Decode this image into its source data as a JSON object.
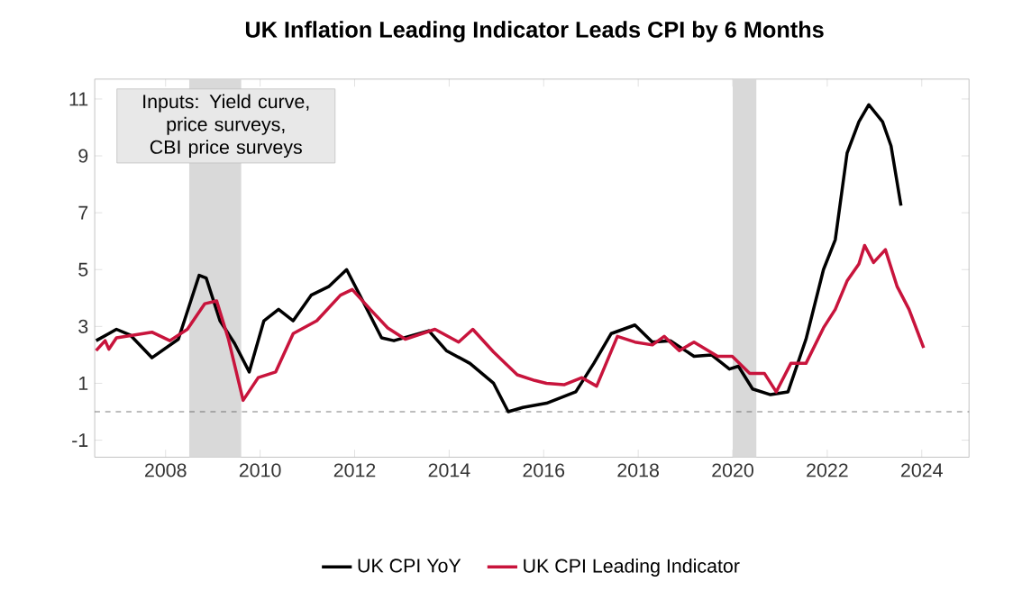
{
  "chart_data": {
    "type": "line",
    "title": "UK Inflation Leading Indicator Leads CPI by 6 Months",
    "annotations": [
      "Inputs: Yield curve, price surveys, CBI price surveys"
    ],
    "xlim": [
      2006.5,
      2025
    ],
    "xticks": [
      2008,
      2010,
      2012,
      2014,
      2016,
      2018,
      2020,
      2022,
      2024
    ],
    "ylim": [
      -1.6,
      11.7
    ],
    "yticks": [
      -1,
      1,
      3,
      5,
      7,
      9,
      11
    ],
    "legend": "bottom",
    "ref_lines": [
      {
        "axis": "y",
        "value": 0,
        "color": "#555555",
        "line_style": "dashed"
      }
    ],
    "bands": [
      {
        "axis": "x",
        "from": 2008.5,
        "to": 2009.6,
        "color": "#d9d9d9"
      },
      {
        "axis": "x",
        "from": 2020.0,
        "to": 2020.5,
        "color": "#d9d9d9"
      }
    ],
    "series": [
      {
        "name": "UK CPI YoY",
        "color": "#000000",
        "x": [
          2006.53,
          2006.8,
          2006.96,
          2007.25,
          2007.71,
          2008.27,
          2008.71,
          2008.86,
          2009.15,
          2009.46,
          2009.77,
          2010.08,
          2010.39,
          2010.7,
          2011.08,
          2011.45,
          2011.83,
          2012.14,
          2012.57,
          2012.83,
          2013.57,
          2013.94,
          2014.44,
          2014.94,
          2015.25,
          2015.56,
          2016.06,
          2016.68,
          2017.06,
          2017.43,
          2017.93,
          2018.3,
          2018.68,
          2019.18,
          2019.55,
          2019.93,
          2020.12,
          2020.42,
          2020.8,
          2021.17,
          2021.55,
          2021.92,
          2022.17,
          2022.42,
          2022.67,
          2022.88,
          2023.17,
          2023.35,
          2023.56
        ],
        "values": [
          2.5,
          2.75,
          2.9,
          2.7,
          1.9,
          2.55,
          4.8,
          4.7,
          3.2,
          2.4,
          1.4,
          3.2,
          3.6,
          3.2,
          4.1,
          4.4,
          5.0,
          4.0,
          2.6,
          2.5,
          2.85,
          2.15,
          1.7,
          1.0,
          0.0,
          0.15,
          0.3,
          0.7,
          1.7,
          2.75,
          3.05,
          2.45,
          2.5,
          1.95,
          2.0,
          1.5,
          1.6,
          0.8,
          0.6,
          0.7,
          2.55,
          5.0,
          6.05,
          9.1,
          10.2,
          10.8,
          10.2,
          9.35,
          7.25
        ]
      },
      {
        "name": "UK CPI Leading Indicator",
        "color": "#c8143c",
        "x": [
          2006.53,
          2006.72,
          2006.8,
          2006.96,
          2007.71,
          2008.09,
          2008.46,
          2008.83,
          2009.08,
          2009.33,
          2009.64,
          2009.96,
          2010.33,
          2010.7,
          2011.2,
          2011.7,
          2011.95,
          2012.33,
          2012.7,
          2013.07,
          2013.7,
          2014.2,
          2014.5,
          2014.94,
          2015.44,
          2015.81,
          2016.06,
          2016.43,
          2016.81,
          2017.12,
          2017.56,
          2017.93,
          2018.3,
          2018.55,
          2018.87,
          2019.18,
          2019.68,
          2019.99,
          2020.36,
          2020.67,
          2020.92,
          2021.23,
          2021.55,
          2021.92,
          2022.17,
          2022.42,
          2022.67,
          2022.79,
          2022.98,
          2023.23,
          2023.48,
          2023.73,
          2024.04
        ],
        "values": [
          2.15,
          2.5,
          2.2,
          2.6,
          2.8,
          2.5,
          2.9,
          3.8,
          3.9,
          2.55,
          0.4,
          1.2,
          1.4,
          2.75,
          3.2,
          4.1,
          4.3,
          3.6,
          2.95,
          2.55,
          2.9,
          2.45,
          2.9,
          2.1,
          1.3,
          1.1,
          1.0,
          0.95,
          1.2,
          0.9,
          2.65,
          2.45,
          2.35,
          2.65,
          2.15,
          2.45,
          1.95,
          1.95,
          1.35,
          1.35,
          0.7,
          1.7,
          1.7,
          2.95,
          3.6,
          4.6,
          5.2,
          5.85,
          5.25,
          5.7,
          4.4,
          3.6,
          2.25
        ]
      }
    ]
  }
}
